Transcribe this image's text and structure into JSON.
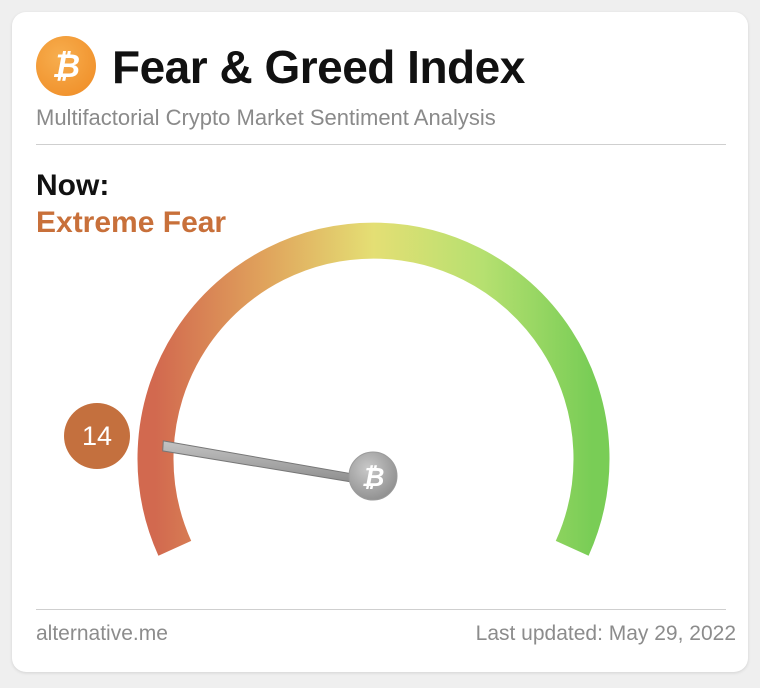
{
  "header": {
    "logo_icon": "bitcoin-icon",
    "logo_symbol": "₿",
    "title": "Fear & Greed Index",
    "subtitle": "Multifactorial Crypto Market Sentiment Analysis"
  },
  "status": {
    "now_label": "Now:",
    "sentiment": "Extreme Fear",
    "sentiment_color": "#c8703a"
  },
  "gauge": {
    "value": "14",
    "min": 0,
    "max": 100,
    "badge_color": "#c4703e",
    "hub_icon": "bitcoin-icon",
    "hub_symbol": "₿",
    "gradient_colors": [
      "#d2694f",
      "#e0a35c",
      "#e4df74",
      "#b6e070",
      "#79cd56"
    ]
  },
  "footer": {
    "source": "alternative.me",
    "last_updated": "Last updated: May 29, 2022"
  }
}
